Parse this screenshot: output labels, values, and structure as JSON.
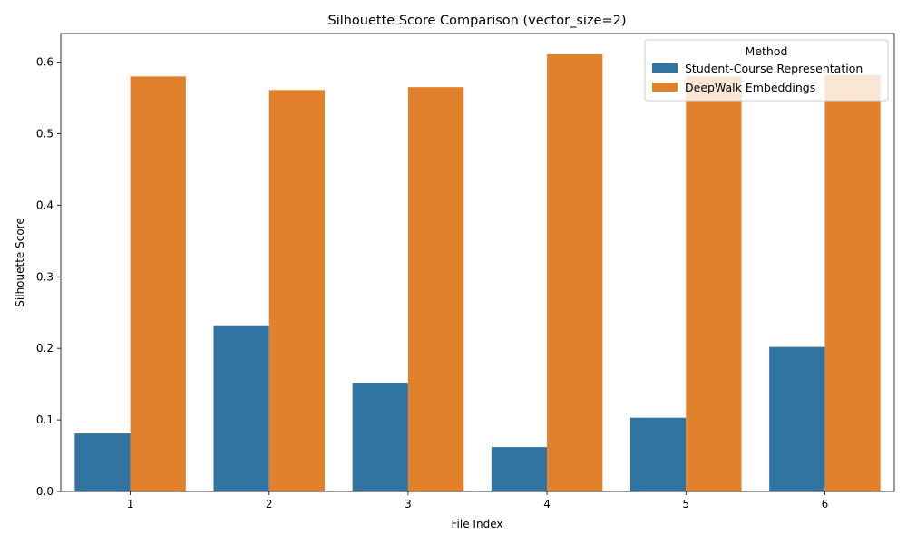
{
  "chart_data": {
    "type": "bar",
    "title": "Silhouette Score Comparison (vector_size=2)",
    "xlabel": "File Index",
    "ylabel": "Silhouette Score",
    "categories": [
      "1",
      "2",
      "3",
      "4",
      "5",
      "6"
    ],
    "series": [
      {
        "name": "Student-Course Representation",
        "color": "#3274a1",
        "values": [
          0.081,
          0.231,
          0.152,
          0.062,
          0.103,
          0.202
        ]
      },
      {
        "name": "DeepWalk Embeddings",
        "color": "#e1812c",
        "values": [
          0.58,
          0.561,
          0.565,
          0.611,
          0.58,
          0.582
        ]
      }
    ],
    "ylim": [
      0,
      0.64
    ],
    "yticks": [
      0.0,
      0.1,
      0.2,
      0.3,
      0.4,
      0.5,
      0.6
    ],
    "yticks_labels": [
      "0.0",
      "0.1",
      "0.2",
      "0.3",
      "0.4",
      "0.5",
      "0.6"
    ],
    "grid": false,
    "legend": {
      "title": "Method",
      "position": "top-right"
    }
  }
}
